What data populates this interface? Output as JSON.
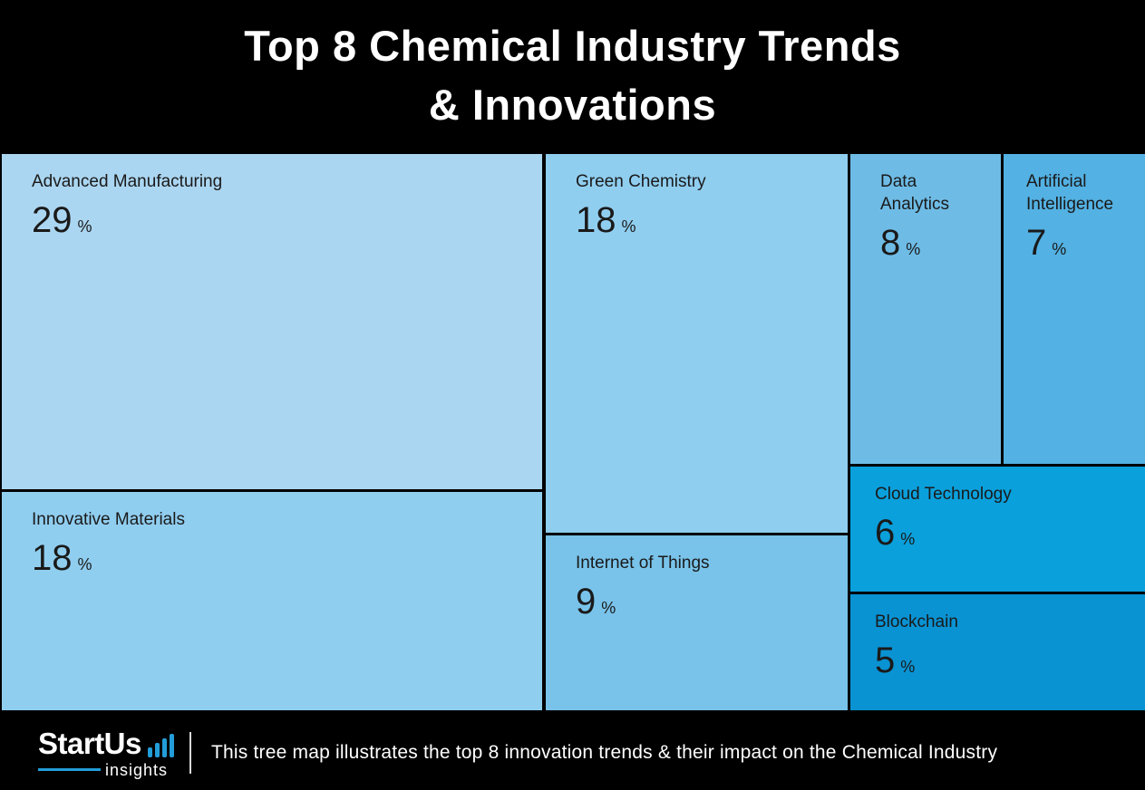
{
  "header": {
    "title_line1": "Top 8 Chemical Industry Trends",
    "title_line2": "& Innovations"
  },
  "treemap": {
    "tiles": [
      {
        "id": "advanced-manufacturing",
        "label": "Advanced Manufacturing",
        "value": "29",
        "unit": "%",
        "color": "#abd6f1"
      },
      {
        "id": "innovative-materials",
        "label": "Innovative Materials",
        "value": "18",
        "unit": "%",
        "color": "#90cef0"
      },
      {
        "id": "green-chemistry",
        "label": "Green Chemistry",
        "value": "18",
        "unit": "%",
        "color": "#90cef0"
      },
      {
        "id": "internet-of-things",
        "label": "Internet of Things",
        "value": "9",
        "unit": "%",
        "color": "#79c3ea"
      },
      {
        "id": "data-analytics",
        "label": "Data Analytics",
        "value": "8",
        "unit": "%",
        "color": "#6ebce6"
      },
      {
        "id": "artificial-intelligence",
        "label": "Artificial Intelligence",
        "value": "7",
        "unit": "%",
        "color": "#53b1e3"
      },
      {
        "id": "cloud-technology",
        "label": "Cloud Technology",
        "value": "6",
        "unit": "%",
        "color": "#0aa0dc"
      },
      {
        "id": "blockchain",
        "label": "Blockchain",
        "value": "5",
        "unit": "%",
        "color": "#0a93d3"
      }
    ]
  },
  "footer": {
    "brand": "StartUs",
    "brand_sub": "insights",
    "accent_color": "#239dd9",
    "caption": "This tree map illustrates the top 8 innovation trends & their impact on the Chemical Industry"
  },
  "chart_data": {
    "type": "treemap",
    "title": "Top 8 Chemical Industry Trends & Innovations",
    "unit": "%",
    "categories": [
      "Advanced Manufacturing",
      "Green Chemistry",
      "Innovative Materials",
      "Internet of Things",
      "Data Analytics",
      "Artificial Intelligence",
      "Cloud Technology",
      "Blockchain"
    ],
    "values": [
      29,
      18,
      18,
      9,
      8,
      7,
      6,
      5
    ],
    "colors": [
      "#abd6f1",
      "#90cef0",
      "#90cef0",
      "#79c3ea",
      "#6ebce6",
      "#53b1e3",
      "#0aa0dc",
      "#0a93d3"
    ],
    "legend": "none",
    "caption": "This tree map illustrates the top 8 innovation trends & their impact on the Chemical Industry"
  }
}
